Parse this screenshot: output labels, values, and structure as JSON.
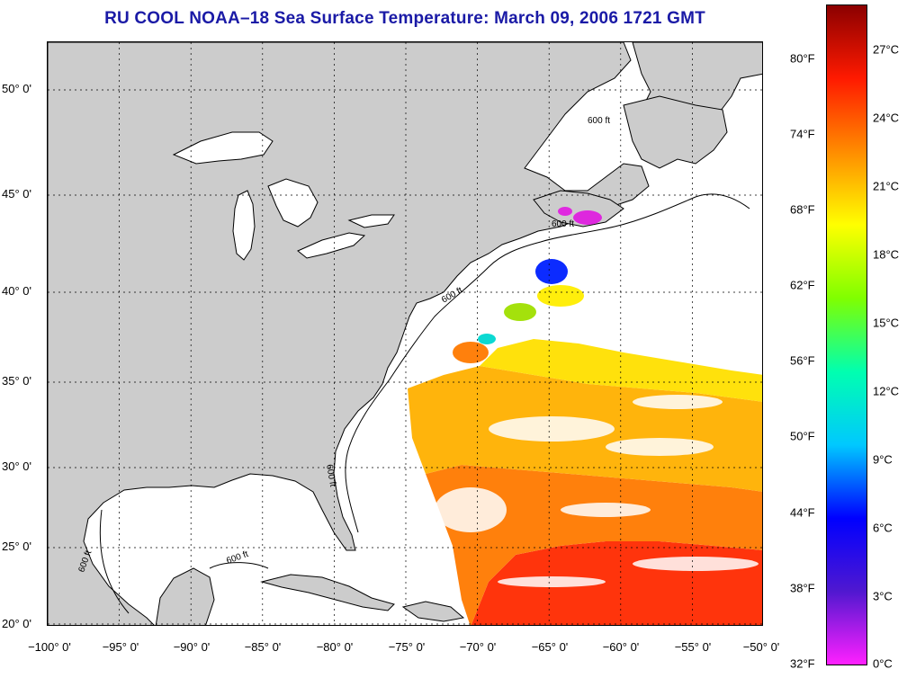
{
  "title": "RU COOL  NOAA–18  Sea Surface Temperature:  March 09, 2006 1721 GMT",
  "map": {
    "lat_labels": [
      "50° 0'",
      "45° 0'",
      "40° 0'",
      "35° 0'",
      "30° 0'",
      "25° 0'",
      "20° 0'"
    ],
    "lon_labels": [
      "−100° 0'",
      "−95° 0'",
      "−90° 0'",
      "−85° 0'",
      "−80° 0'",
      "−75° 0'",
      "−70° 0'",
      "−65° 0'",
      "−60° 0'",
      "−55° 0'",
      "−50° 0'"
    ],
    "contour_label": "600 ft",
    "land_color": "#cccccc",
    "ocean_color": "#ffffff"
  },
  "colorbar": {
    "fahrenheit_labels": [
      "80°F",
      "74°F",
      "68°F",
      "62°F",
      "56°F",
      "50°F",
      "44°F",
      "38°F",
      "32°F"
    ],
    "celsius_labels": [
      "27°C",
      "24°C",
      "21°C",
      "18°C",
      "15°C",
      "12°C",
      "9°C",
      "6°C",
      "3°C",
      "0°C"
    ],
    "colors": [
      "#8b0000",
      "#ff1a00",
      "#ff8c00",
      "#ffff00",
      "#80ff00",
      "#00ffb0",
      "#00c8ff",
      "#0000ff",
      "#5018d0",
      "#ff20ff"
    ]
  }
}
